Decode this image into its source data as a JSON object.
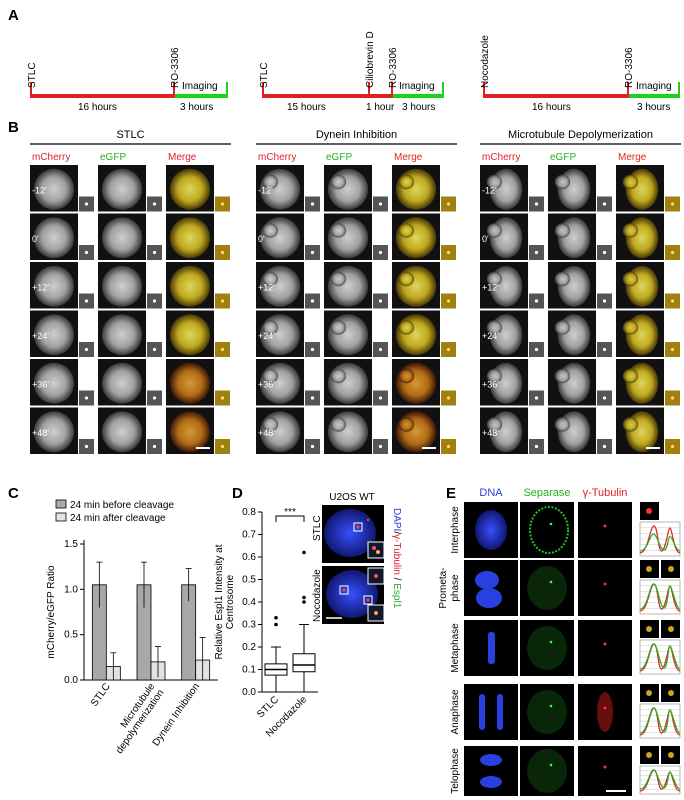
{
  "panels": {
    "a": "A",
    "b": "B",
    "c": "C",
    "d": "D",
    "e": "E"
  },
  "panel_a": {
    "timelines": [
      {
        "start_label": "STLC",
        "mid_label": "",
        "end_label": "RO-3306",
        "red_label_1": "16 hours",
        "red_label_2": "",
        "green_top": "Imaging",
        "green_label": "3 hours"
      },
      {
        "start_label": "STLC",
        "mid_label": "Ciliobrevin D",
        "end_label": "RO-3306",
        "red_label_1": "15 hours",
        "red_label_2": "1 hour",
        "green_top": "Imaging",
        "green_label": "3 hours"
      },
      {
        "start_label": "Nocodazole",
        "mid_label": "",
        "end_label": "RO-3306",
        "red_label_1": "16 hours",
        "red_label_2": "",
        "green_top": "Imaging",
        "green_label": "3 hours"
      }
    ]
  },
  "panel_b": {
    "groups": [
      {
        "title": "STLC"
      },
      {
        "title": "Dynein Inhibition"
      },
      {
        "title": "Microtubule Depolymerization"
      }
    ],
    "channels": {
      "mcherry": "mCherry",
      "egfp": "eGFP",
      "merge": "Merge"
    },
    "timepoints": [
      "-12'",
      "0'",
      "+12'",
      "+24'",
      "+36'",
      "+48'"
    ],
    "colors": {
      "mcherry": "#e0202a",
      "egfp": "#22b022",
      "merge": "#e0202a"
    }
  },
  "panel_c": {
    "chart_data": {
      "type": "bar",
      "categories": [
        "STLC",
        "Microtubule depolymerization",
        "Dynein Inhibition"
      ],
      "series": [
        {
          "name": "24 min before cleavage",
          "values": [
            1.05,
            1.05,
            1.05
          ],
          "errors": [
            0.25,
            0.25,
            0.18
          ],
          "color": "#a8a8a8"
        },
        {
          "name": "24 min after cleavage",
          "values": [
            0.15,
            0.2,
            0.22
          ],
          "errors": [
            0.15,
            0.17,
            0.25
          ],
          "color": "#e2e2e2"
        }
      ],
      "ylabel": "mCherry/eGFP Ratio",
      "ylim": [
        0,
        1.5
      ],
      "yticks": [
        "0.0",
        "0.5",
        "1.0",
        "1.5"
      ],
      "legend_position": "top"
    }
  },
  "panel_d": {
    "chart_data": {
      "type": "box",
      "categories": [
        "STLC",
        "Nocodazole"
      ],
      "ylabel": "Relative Espl1 Intensity at Centrosome",
      "ylim": [
        0,
        0.8
      ],
      "yticks": [
        "0.0",
        "0.1",
        "0.2",
        "0.3",
        "0.4",
        "0.5",
        "0.6",
        "0.7",
        "0.8"
      ],
      "boxes": [
        {
          "whisker_low": 0.0,
          "q1": 0.075,
          "median": 0.1,
          "q3": 0.125,
          "whisker_high": 0.2,
          "outliers": [
            0.3,
            0.33
          ]
        },
        {
          "whisker_low": 0.0,
          "q1": 0.09,
          "median": 0.12,
          "q3": 0.17,
          "whisker_high": 0.3,
          "outliers": [
            0.4,
            0.42,
            0.62
          ]
        }
      ],
      "significance": "***"
    },
    "micro_title": "U2OS WT",
    "micro_rows": [
      "STLC",
      "Nocodazole"
    ],
    "side_label": {
      "dapi": "DAPI",
      "sep1": "/",
      "tub": "γ-Tubulin",
      "sep2": " / ",
      "espl": "Espl1"
    },
    "colors": {
      "dapi": "#2a3ae0",
      "tub": "#e0202a",
      "espl": "#22b022"
    }
  },
  "panel_e": {
    "columns": {
      "dna": "DNA",
      "separase": "Separase",
      "tubulin": "γ-Tubulin"
    },
    "phases": [
      "Interphase",
      "Prometa-\nphase",
      "Metaphase",
      "Anaphase",
      "Telophase"
    ],
    "prometa_line1": "Prometa-",
    "prometa_line2": "phase",
    "colors": {
      "dna": "#2a3ae0",
      "separase": "#22b022",
      "tubulin": "#e0202a"
    }
  }
}
